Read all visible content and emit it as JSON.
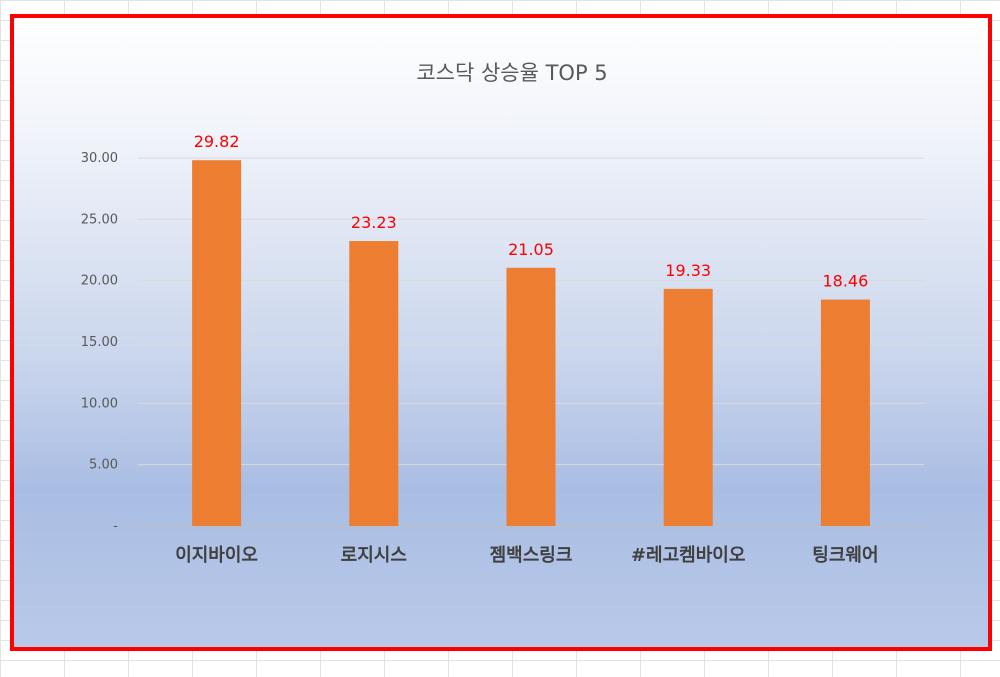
{
  "chart_data": {
    "type": "bar",
    "title": "코스닥 상승율 TOP 5",
    "categories": [
      "이지바이오",
      "로지시스",
      "젬백스링크",
      "#레고켐바이오",
      "팅크웨어"
    ],
    "values": [
      29.82,
      23.23,
      21.05,
      19.33,
      18.46
    ],
    "data_labels": [
      "29.82",
      "23.23",
      "21.05",
      "19.33",
      "18.46"
    ],
    "ylim": [
      0,
      30
    ],
    "yticks": [
      0,
      5,
      10,
      15,
      20,
      25,
      30
    ],
    "ytick_labels": [
      "-",
      "5.00",
      "10.00",
      "15.00",
      "20.00",
      "25.00",
      "30.00"
    ],
    "grid": true,
    "legend": "none",
    "bar_color": "#ed7d31",
    "label_color": "#ff0000",
    "frame_color": "#ff0000"
  }
}
